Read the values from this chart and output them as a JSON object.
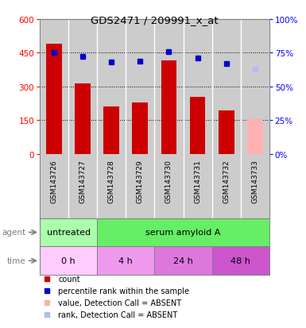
{
  "title": "GDS2471 / 209991_x_at",
  "samples": [
    "GSM143726",
    "GSM143727",
    "GSM143728",
    "GSM143729",
    "GSM143730",
    "GSM143731",
    "GSM143732",
    "GSM143733"
  ],
  "bar_values": [
    490,
    315,
    210,
    230,
    415,
    255,
    195,
    155
  ],
  "bar_colors": [
    "#cc0000",
    "#cc0000",
    "#cc0000",
    "#cc0000",
    "#cc0000",
    "#cc0000",
    "#cc0000",
    "#ffb0b0"
  ],
  "rank_values": [
    75,
    72,
    68,
    69,
    76,
    71,
    67,
    63
  ],
  "rank_colors": [
    "#0000cc",
    "#0000cc",
    "#0000cc",
    "#0000cc",
    "#0000cc",
    "#0000cc",
    "#0000cc",
    "#b8b8ff"
  ],
  "ylim_left": [
    0,
    600
  ],
  "ylim_right": [
    0,
    100
  ],
  "yticks_left": [
    0,
    150,
    300,
    450,
    600
  ],
  "yticks_right": [
    0,
    25,
    50,
    75,
    100
  ],
  "agent_groups": [
    {
      "label": "untreated",
      "start": 0,
      "end": 2,
      "color": "#aaffaa"
    },
    {
      "label": "serum amyloid A",
      "start": 2,
      "end": 8,
      "color": "#66ee66"
    }
  ],
  "time_groups": [
    {
      "label": "0 h",
      "start": 0,
      "end": 2,
      "color": "#ffccff"
    },
    {
      "label": "4 h",
      "start": 2,
      "end": 4,
      "color": "#ee99ee"
    },
    {
      "label": "24 h",
      "start": 4,
      "end": 6,
      "color": "#dd77dd"
    },
    {
      "label": "48 h",
      "start": 6,
      "end": 8,
      "color": "#cc55cc"
    }
  ],
  "legend_items": [
    {
      "label": "count",
      "color": "#cc0000"
    },
    {
      "label": "percentile rank within the sample",
      "color": "#0000cc"
    },
    {
      "label": "value, Detection Call = ABSENT",
      "color": "#ffb0b0"
    },
    {
      "label": "rank, Detection Call = ABSENT",
      "color": "#b8b8ff"
    }
  ],
  "bar_width": 0.55,
  "background_color": "#cccccc",
  "chart_bg": "#ffffff"
}
